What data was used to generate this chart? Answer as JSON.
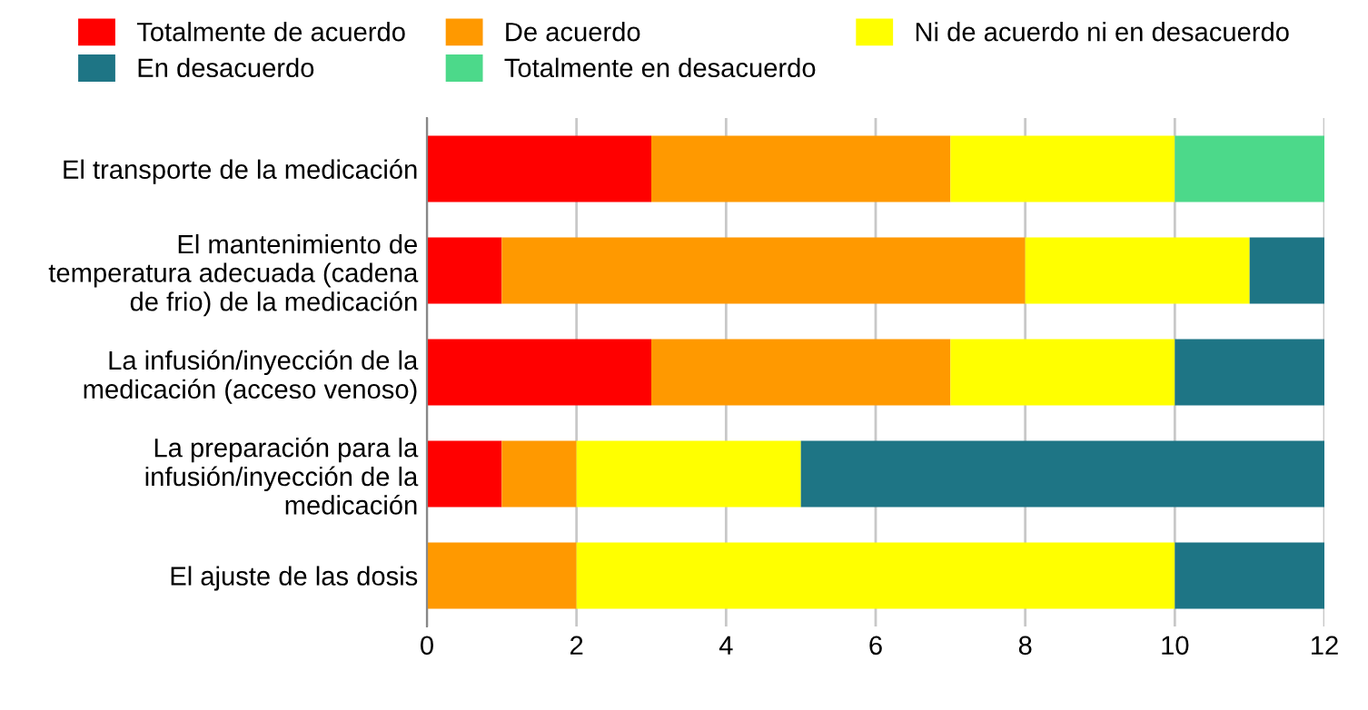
{
  "chart_data": {
    "type": "bar",
    "orientation": "horizontal",
    "stacked": true,
    "categories": [
      "El transporte de la medicación",
      "El mantenimiento de\ntemperatura adecuada (cadena\nde frio) de la medicación",
      "La infusión/inyección de la\nmedicación (acceso venoso)",
      "La preparación para la\ninfusión/inyección de la\nmedicación",
      "El ajuste de las dosis"
    ],
    "series": [
      {
        "name": "Totalmente de acuerdo",
        "color": "#ff0000",
        "values": [
          3,
          1,
          3,
          1,
          0
        ]
      },
      {
        "name": "De acuerdo",
        "color": "#ff9900",
        "values": [
          4,
          7,
          4,
          1,
          2
        ]
      },
      {
        "name": "Ni de acuerdo ni en desacuerdo",
        "color": "#ffff00",
        "values": [
          3,
          3,
          3,
          3,
          8
        ]
      },
      {
        "name": "En desacuerdo",
        "color": "#1e7585",
        "values": [
          0,
          1,
          2,
          7,
          2
        ]
      },
      {
        "name": "Totalmente en desacuerdo",
        "color": "#4cd98a",
        "values": [
          2,
          0,
          0,
          0,
          0
        ]
      }
    ],
    "xlim": [
      0,
      12
    ],
    "xticks": [
      0,
      2,
      4,
      6,
      8,
      10,
      12
    ],
    "grid": "x",
    "legend": "top"
  }
}
